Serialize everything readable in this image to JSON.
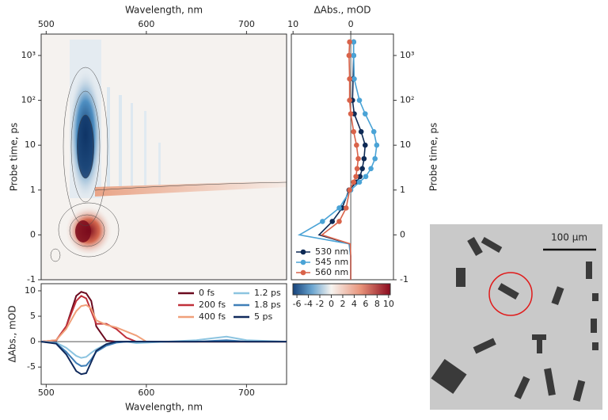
{
  "chart_data": [
    {
      "type": "contour",
      "xlabel": "Wavelength, nm",
      "ylabel": "Probe time, ps",
      "xlim": [
        495,
        740
      ],
      "xticks": [
        500,
        600,
        700
      ],
      "yscale": "symlog",
      "ylim": [
        -1,
        3000
      ],
      "yticks": [
        -1,
        0,
        1,
        10,
        {
          "value": 100,
          "label": "10²"
        },
        {
          "value": 1000,
          "label": "10³"
        }
      ]
    },
    {
      "type": "kinetics",
      "xlabel": "ΔAbs., mOD",
      "ylabel": "Probe time, ps",
      "xlim": [
        10.3,
        -7.4
      ],
      "xticks": [
        10,
        0
      ],
      "yscale": "symlog",
      "ylim": [
        -1,
        3000
      ],
      "yticks": [
        -1,
        0,
        1,
        10,
        {
          "value": 100,
          "label": "10²"
        },
        {
          "value": 1000,
          "label": "10³"
        }
      ],
      "y": [
        -1,
        -0.5,
        -0.2,
        0,
        0.3,
        0.6,
        1,
        1.5,
        2,
        3,
        5,
        10,
        20,
        50,
        100,
        300,
        1000,
        2000
      ],
      "series": [
        {
          "name": "530 nm",
          "color": "#0e2a55",
          "values": [
            0,
            0,
            0.2,
            5.5,
            3.2,
            1.5,
            0.3,
            -1,
            -1.6,
            -2,
            -2.3,
            -2.5,
            -1.8,
            -0.6,
            -0.3,
            -0.4,
            -0.5,
            -0.5
          ]
        },
        {
          "name": "545 nm",
          "color": "#4aa3d6",
          "values": [
            0,
            0,
            0.3,
            8.9,
            4.9,
            2,
            0,
            -1.5,
            -2.6,
            -3.5,
            -4.2,
            -4.5,
            -4,
            -2.5,
            -1.5,
            -0.6,
            -0.5,
            -0.5
          ]
        },
        {
          "name": "560 nm",
          "color": "#d9634a",
          "values": [
            0,
            0,
            0.1,
            5,
            2,
            0.8,
            0.2,
            -0.5,
            -0.9,
            -1.1,
            -1.3,
            -1,
            -0.5,
            0,
            0.2,
            0.2,
            0.3,
            0.2
          ]
        }
      ]
    },
    {
      "type": "colorbar",
      "xlim": [
        -6.7,
        10.3
      ],
      "xticks": [
        -6,
        -4,
        -2,
        0,
        2,
        4,
        6,
        8,
        10
      ],
      "colors": [
        "#16427a",
        "#6aa5d0",
        "#f7f4f0",
        "#e8937a",
        "#8b0a1e"
      ]
    },
    {
      "type": "line",
      "xlabel": "Wavelength, nm",
      "ylabel": "ΔAbs., mOD",
      "xlim": [
        495,
        740
      ],
      "xticks": [
        500,
        600,
        700
      ],
      "ylim": [
        -8.4,
        11.4
      ],
      "yticks": [
        -5,
        0,
        5,
        10
      ],
      "x": [
        495,
        510,
        520,
        530,
        535,
        540,
        545,
        550,
        560,
        570,
        580,
        590,
        600,
        620,
        650,
        680,
        700,
        740
      ],
      "series": [
        {
          "name": "0 fs",
          "color": "#6b0a1f",
          "values": [
            0,
            0.2,
            3,
            9,
            9.8,
            9.5,
            8,
            3,
            0.2,
            0,
            0,
            0,
            0,
            0,
            0,
            0,
            0,
            0
          ]
        },
        {
          "name": "200 fs",
          "color": "#c0303a",
          "values": [
            0,
            0.3,
            3,
            8,
            9,
            8.5,
            6,
            3.5,
            3.5,
            2.5,
            0.8,
            0,
            0,
            0,
            0,
            0,
            0,
            0
          ]
        },
        {
          "name": "400 fs",
          "color": "#f0a07a",
          "values": [
            0,
            0.3,
            2.5,
            6,
            7,
            7.2,
            6.5,
            4.2,
            3.3,
            2.8,
            2,
            1.2,
            0,
            0,
            0,
            0,
            0,
            0
          ]
        },
        {
          "name": "1.2 ps",
          "color": "#8cc4e0",
          "values": [
            0,
            -0.2,
            -1.2,
            -2.8,
            -3.2,
            -3,
            -2.2,
            -1.5,
            -0.5,
            0,
            0,
            -0.3,
            -0.2,
            0,
            0.3,
            1,
            0.3,
            0
          ]
        },
        {
          "name": "1.8 ps",
          "color": "#3f7fb8",
          "values": [
            0,
            -0.3,
            -2,
            -4.2,
            -4.8,
            -4.7,
            -3.5,
            -2,
            -0.8,
            -0.2,
            0,
            0,
            0,
            0,
            0,
            0.3,
            0,
            0
          ]
        },
        {
          "name": "5 ps",
          "color": "#102a5c",
          "values": [
            0,
            -0.4,
            -2.5,
            -5.8,
            -6.4,
            -6.2,
            -4,
            -1.8,
            -0.5,
            0,
            0,
            0,
            0,
            0,
            0,
            0,
            0,
            0
          ]
        }
      ]
    },
    {
      "type": "image",
      "annotations": [
        "100 µm"
      ]
    }
  ]
}
